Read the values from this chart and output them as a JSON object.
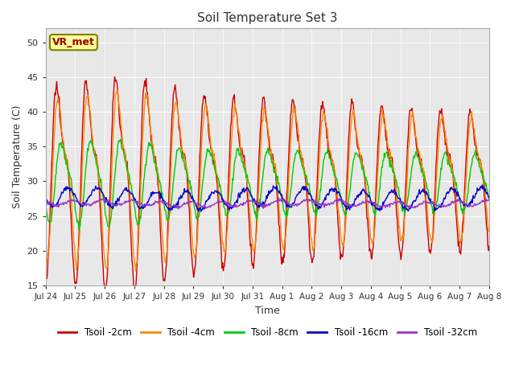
{
  "title": "Soil Temperature Set 3",
  "xlabel": "Time",
  "ylabel": "Soil Temperature (C)",
  "ylim": [
    15,
    52
  ],
  "yticks": [
    15,
    20,
    25,
    30,
    35,
    40,
    45,
    50
  ],
  "fig_bg_color": "#ffffff",
  "plot_bg_color": "#e8e8e8",
  "grid_color": "#ffffff",
  "annotation_text": "VR_met",
  "annotation_bg": "#ffff99",
  "annotation_border": "#808000",
  "annotation_text_color": "#990000",
  "series": [
    {
      "label": "Tsoil -2cm",
      "color": "#cc0000",
      "lw": 1.0
    },
    {
      "label": "Tsoil -4cm",
      "color": "#ff8800",
      "lw": 1.0
    },
    {
      "label": "Tsoil -8cm",
      "color": "#00cc00",
      "lw": 1.0
    },
    {
      "label": "Tsoil -16cm",
      "color": "#0000cc",
      "lw": 1.0
    },
    {
      "label": "Tsoil -32cm",
      "color": "#9933cc",
      "lw": 1.0
    }
  ],
  "xtick_labels": [
    "Jul 24",
    "Jul 25",
    "Jul 26",
    "Jul 27",
    "Jul 28",
    "Jul 29",
    "Jul 30",
    "Jul 31",
    "Aug 1",
    "Aug 2",
    "Aug 3",
    "Aug 4",
    "Aug 5",
    "Aug 6",
    "Aug 7",
    "Aug 8"
  ],
  "n_days": 15,
  "samples_per_day": 48
}
